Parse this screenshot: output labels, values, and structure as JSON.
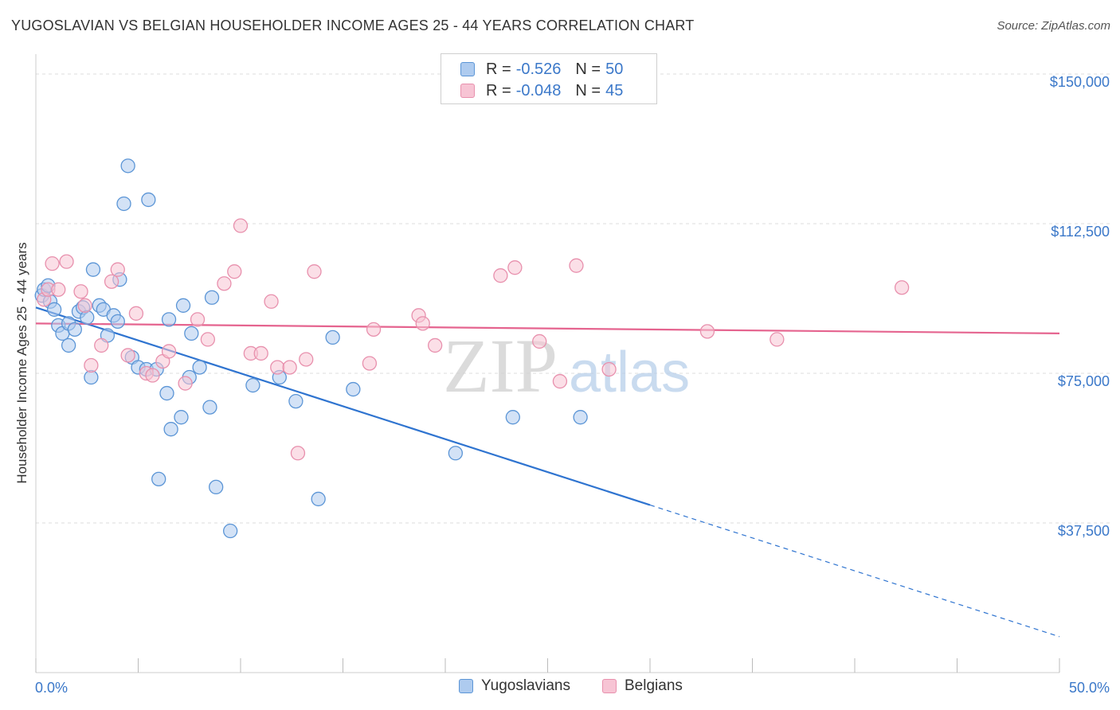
{
  "title": "YUGOSLAVIAN VS BELGIAN HOUSEHOLDER INCOME AGES 25 - 44 YEARS CORRELATION CHART",
  "source": "Source: ZipAtlas.com",
  "watermark": {
    "zip": "ZIP",
    "atlas": "atlas"
  },
  "stats": {
    "yugo": {
      "r_label": "R =",
      "r_value": "-0.526",
      "n_label": "N =",
      "n_value": "50"
    },
    "belg": {
      "r_label": "R =",
      "r_value": "-0.048",
      "n_label": "N =",
      "n_value": "45"
    }
  },
  "colors": {
    "yugo_fill": "#aecbef",
    "yugo_stroke": "#5b95d6",
    "yugo_line": "#2f74d0",
    "belg_fill": "#f7c4d4",
    "belg_stroke": "#e890ad",
    "belg_line": "#e5648f",
    "grid": "#dddddd",
    "axis_text": "#3b78c9"
  },
  "chart_data": {
    "type": "scatter",
    "title": "YUGOSLAVIAN VS BELGIAN HOUSEHOLDER INCOME AGES 25 - 44 YEARS CORRELATION CHART",
    "xlabel": "",
    "ylabel": "Householder Income Ages 25 - 44 years",
    "xlim": [
      0,
      50
    ],
    "ylim": [
      0,
      153000
    ],
    "x_tick_labels": [
      "0.0%",
      "50.0%"
    ],
    "y_ticks": [
      37500,
      75000,
      112500,
      150000
    ],
    "y_tick_labels": [
      "$37,500",
      "$75,000",
      "$112,500",
      "$150,000"
    ],
    "grid": true,
    "legend_position": "top-center",
    "series": [
      {
        "name": "Yugoslavians",
        "points": [
          [
            0.3,
            94500
          ],
          [
            0.4,
            96000
          ],
          [
            0.6,
            97000
          ],
          [
            0.7,
            93000
          ],
          [
            0.9,
            91000
          ],
          [
            1.1,
            87000
          ],
          [
            1.3,
            85000
          ],
          [
            1.6,
            82000
          ],
          [
            1.6,
            87500
          ],
          [
            1.9,
            86000
          ],
          [
            2.1,
            90500
          ],
          [
            2.3,
            91500
          ],
          [
            2.5,
            89000
          ],
          [
            2.7,
            74000
          ],
          [
            2.8,
            101000
          ],
          [
            3.1,
            92000
          ],
          [
            3.3,
            91000
          ],
          [
            3.5,
            84500
          ],
          [
            3.8,
            89500
          ],
          [
            4.0,
            88000
          ],
          [
            4.1,
            98500
          ],
          [
            4.3,
            117500
          ],
          [
            4.5,
            127000
          ],
          [
            4.7,
            79000
          ],
          [
            5.0,
            76500
          ],
          [
            5.4,
            76000
          ],
          [
            5.5,
            118500
          ],
          [
            5.9,
            76000
          ],
          [
            6.0,
            48500
          ],
          [
            6.4,
            70000
          ],
          [
            6.5,
            88500
          ],
          [
            6.6,
            61000
          ],
          [
            7.1,
            64000
          ],
          [
            7.2,
            92000
          ],
          [
            7.5,
            74000
          ],
          [
            7.6,
            85000
          ],
          [
            8.0,
            76500
          ],
          [
            8.5,
            66500
          ],
          [
            8.6,
            94000
          ],
          [
            8.8,
            46500
          ],
          [
            9.5,
            35500
          ],
          [
            10.6,
            72000
          ],
          [
            11.9,
            74000
          ],
          [
            12.7,
            68000
          ],
          [
            13.8,
            43500
          ],
          [
            14.5,
            84000
          ],
          [
            15.5,
            71000
          ],
          [
            20.5,
            55000
          ],
          [
            23.3,
            64000
          ],
          [
            26.6,
            64000
          ]
        ],
        "trend": {
          "x": [
            0,
            30
          ],
          "y": [
            91500,
            42000
          ],
          "dashed_extension": {
            "x": [
              30,
              50
            ],
            "y": [
              42000,
              9000
            ]
          }
        }
      },
      {
        "name": "Belgians",
        "points": [
          [
            0.4,
            93500
          ],
          [
            0.6,
            96000
          ],
          [
            0.8,
            102500
          ],
          [
            1.1,
            96000
          ],
          [
            1.5,
            103000
          ],
          [
            2.2,
            95500
          ],
          [
            2.4,
            92000
          ],
          [
            2.7,
            77000
          ],
          [
            3.2,
            82000
          ],
          [
            3.7,
            98000
          ],
          [
            4.0,
            101000
          ],
          [
            4.5,
            79500
          ],
          [
            4.9,
            90000
          ],
          [
            5.4,
            75000
          ],
          [
            5.7,
            74500
          ],
          [
            6.2,
            78000
          ],
          [
            6.5,
            80500
          ],
          [
            7.3,
            72500
          ],
          [
            7.9,
            88500
          ],
          [
            8.4,
            83500
          ],
          [
            9.2,
            97500
          ],
          [
            9.7,
            100500
          ],
          [
            10.0,
            112000
          ],
          [
            10.5,
            80000
          ],
          [
            11.0,
            80000
          ],
          [
            11.5,
            93000
          ],
          [
            11.8,
            76500
          ],
          [
            12.4,
            76500
          ],
          [
            12.8,
            55000
          ],
          [
            13.2,
            78500
          ],
          [
            13.6,
            100500
          ],
          [
            16.3,
            77500
          ],
          [
            16.5,
            86000
          ],
          [
            18.7,
            89500
          ],
          [
            18.9,
            87500
          ],
          [
            19.5,
            82000
          ],
          [
            22.7,
            99500
          ],
          [
            23.4,
            101500
          ],
          [
            24.6,
            83000
          ],
          [
            25.6,
            73000
          ],
          [
            26.4,
            102000
          ],
          [
            28.0,
            76000
          ],
          [
            32.8,
            85500
          ],
          [
            36.2,
            83500
          ],
          [
            42.3,
            96500
          ]
        ],
        "trend": {
          "x": [
            0,
            50
          ],
          "y": [
            87500,
            85000
          ]
        }
      }
    ]
  },
  "legend": {
    "items": [
      "Yugoslavians",
      "Belgians"
    ]
  }
}
